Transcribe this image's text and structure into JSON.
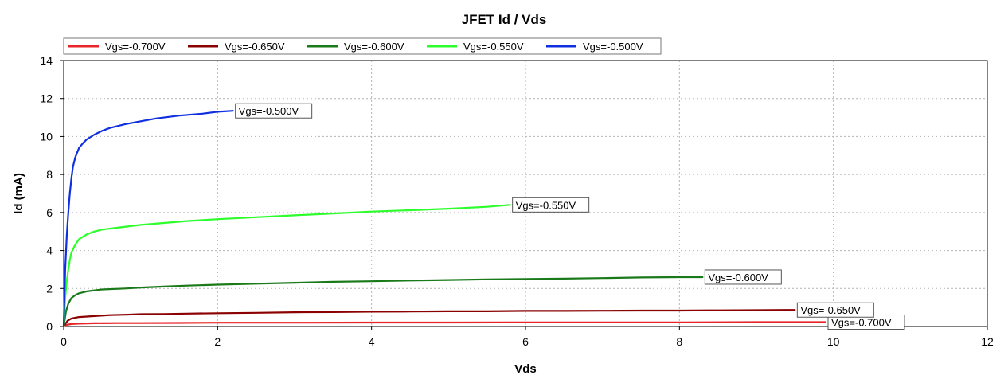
{
  "chart_data": {
    "type": "line",
    "title": "JFET Id / Vds",
    "xlabel": "Vds",
    "ylabel": "Id (mA)",
    "xlim": [
      0,
      12
    ],
    "ylim": [
      0,
      14
    ],
    "xticks": [
      "0",
      "2",
      "4",
      "6",
      "8",
      "10",
      "12"
    ],
    "yticks": [
      "0",
      "2",
      "4",
      "6",
      "8",
      "10",
      "12",
      "14"
    ],
    "grid": true,
    "legend_position": "top-left",
    "series": [
      {
        "name": "Vgs=-0.700V",
        "color": "#e8262a",
        "annotation": "Vgs=-0.700V",
        "x": [
          0,
          0.05,
          0.1,
          0.2,
          0.4,
          0.7,
          1.0,
          1.5,
          2.0,
          3.0,
          4.0,
          5.0,
          6.0,
          7.0,
          8.0,
          9.0,
          9.9
        ],
        "y": [
          0,
          0.1,
          0.13,
          0.15,
          0.17,
          0.18,
          0.18,
          0.19,
          0.2,
          0.2,
          0.21,
          0.21,
          0.22,
          0.22,
          0.22,
          0.23,
          0.23
        ]
      },
      {
        "name": "Vgs=-0.650V",
        "color": "#8b0000",
        "annotation": "Vgs=-0.650V",
        "x": [
          0,
          0.05,
          0.1,
          0.2,
          0.4,
          0.6,
          0.8,
          1.0,
          1.3,
          1.6,
          2.0,
          2.5,
          3.0,
          3.5,
          4.0,
          4.5,
          5.0,
          5.5,
          6.0,
          6.5,
          7.0,
          7.5,
          8.0,
          8.5,
          9.0,
          9.4,
          9.5
        ],
        "y": [
          0,
          0.3,
          0.42,
          0.5,
          0.55,
          0.6,
          0.62,
          0.65,
          0.66,
          0.68,
          0.7,
          0.72,
          0.75,
          0.76,
          0.78,
          0.79,
          0.8,
          0.8,
          0.82,
          0.82,
          0.83,
          0.84,
          0.84,
          0.85,
          0.86,
          0.87,
          0.87
        ]
      },
      {
        "name": "Vgs=-0.600V",
        "color": "#1a7a1a",
        "annotation": "Vgs=-0.600V",
        "x": [
          0,
          0.03,
          0.06,
          0.1,
          0.15,
          0.2,
          0.3,
          0.5,
          0.8,
          1.0,
          1.3,
          1.6,
          2.0,
          2.5,
          3.0,
          3.5,
          4.0,
          4.5,
          5.0,
          5.5,
          6.0,
          6.5,
          7.0,
          7.5,
          8.0,
          8.3
        ],
        "y": [
          0,
          0.8,
          1.2,
          1.5,
          1.65,
          1.75,
          1.85,
          1.95,
          2.0,
          2.05,
          2.1,
          2.15,
          2.2,
          2.25,
          2.3,
          2.35,
          2.38,
          2.42,
          2.45,
          2.48,
          2.5,
          2.52,
          2.55,
          2.58,
          2.6,
          2.6
        ]
      },
      {
        "name": "Vgs=-0.550V",
        "color": "#2cff2c",
        "annotation": "Vgs=-0.550V",
        "x": [
          0,
          0.02,
          0.04,
          0.06,
          0.08,
          0.1,
          0.15,
          0.2,
          0.3,
          0.4,
          0.5,
          0.7,
          1.0,
          1.3,
          1.6,
          2.0,
          2.5,
          3.0,
          3.5,
          4.0,
          4.5,
          5.0,
          5.5,
          5.8
        ],
        "y": [
          0,
          1.5,
          2.4,
          3.0,
          3.5,
          3.9,
          4.3,
          4.6,
          4.85,
          5.0,
          5.1,
          5.2,
          5.35,
          5.45,
          5.55,
          5.65,
          5.75,
          5.85,
          5.95,
          6.05,
          6.12,
          6.2,
          6.3,
          6.4
        ]
      },
      {
        "name": "Vgs=-0.500V",
        "color": "#1030e0",
        "annotation": "Vgs=-0.500V",
        "x": [
          0,
          0.02,
          0.04,
          0.06,
          0.08,
          0.1,
          0.12,
          0.15,
          0.2,
          0.25,
          0.3,
          0.4,
          0.5,
          0.6,
          0.8,
          1.0,
          1.2,
          1.5,
          1.8,
          2.0,
          2.2
        ],
        "y": [
          0,
          3.0,
          4.8,
          6.0,
          7.0,
          7.8,
          8.4,
          8.9,
          9.4,
          9.65,
          9.85,
          10.1,
          10.3,
          10.45,
          10.65,
          10.8,
          10.95,
          11.1,
          11.2,
          11.3,
          11.35
        ]
      }
    ]
  }
}
